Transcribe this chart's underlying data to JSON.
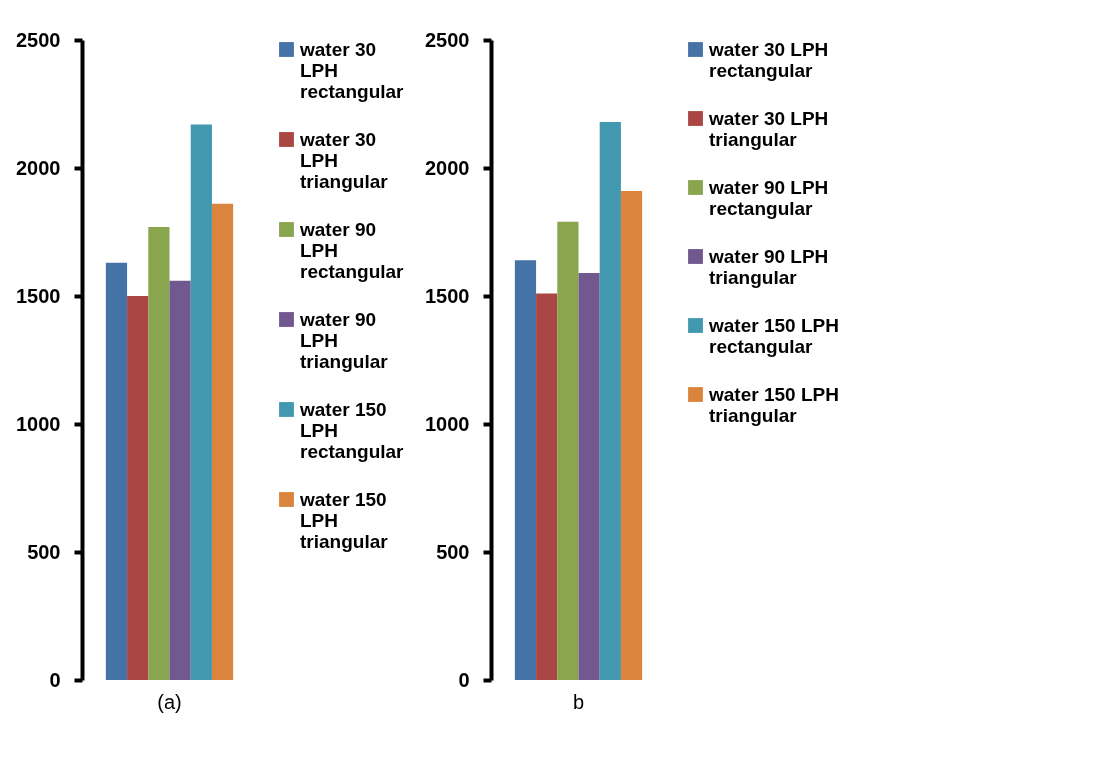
{
  "chart_data": [
    {
      "type": "bar",
      "categories": [
        "(a)"
      ],
      "ylim": [
        0,
        2500
      ],
      "yticks": [
        0,
        500,
        1000,
        1500,
        2000,
        2500
      ],
      "grid": false,
      "legend": "right",
      "series": [
        {
          "name": "water 30 LPH rectangular",
          "color": "#4572a7",
          "values": [
            1630
          ]
        },
        {
          "name": "water 30 LPH triangular",
          "color": "#aa4643",
          "values": [
            1500
          ]
        },
        {
          "name": "water 90 LPH rectangular",
          "color": "#89a54e",
          "values": [
            1770
          ]
        },
        {
          "name": "water 90 LPH triangular",
          "color": "#71588f",
          "values": [
            1560
          ]
        },
        {
          "name": "water 150 LPH rectangular",
          "color": "#4198af",
          "values": [
            2170
          ]
        },
        {
          "name": "water 150 LPH triangular",
          "color": "#db843d",
          "values": [
            1860
          ]
        }
      ]
    },
    {
      "type": "bar",
      "categories": [
        "b"
      ],
      "ylim": [
        0,
        2500
      ],
      "yticks": [
        0,
        500,
        1000,
        1500,
        2000,
        2500
      ],
      "grid": false,
      "legend": "right",
      "series": [
        {
          "name": "water 30 LPH rectangular",
          "color": "#4572a7",
          "values": [
            1640
          ]
        },
        {
          "name": "water 30 LPH triangular",
          "color": "#aa4643",
          "values": [
            1510
          ]
        },
        {
          "name": "water 90 LPH rectangular",
          "color": "#89a54e",
          "values": [
            1790
          ]
        },
        {
          "name": "water 90 LPH triangular",
          "color": "#71588f",
          "values": [
            1590
          ]
        },
        {
          "name": "water 150 LPH rectangular",
          "color": "#4198af",
          "values": [
            2180
          ]
        },
        {
          "name": "water 150 LPH triangular",
          "color": "#db843d",
          "values": [
            1910
          ]
        }
      ]
    }
  ]
}
